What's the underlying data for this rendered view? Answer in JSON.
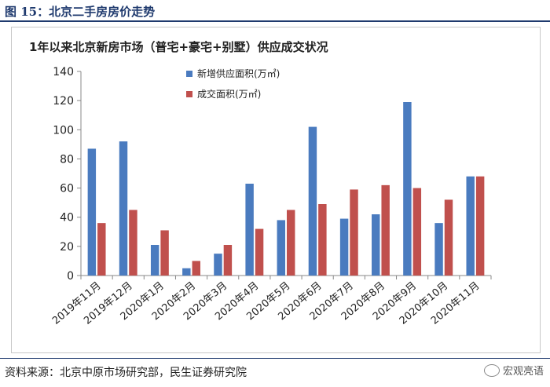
{
  "figure_title": "图 15：北京二手房房价走势",
  "source_text": "资料来源：北京中原市场研究部，民生证券研究院",
  "watermark": "宏观亮语",
  "colors": {
    "series1": "#4a7bbf",
    "series2": "#c0504d",
    "accent": "#1f3a6e"
  },
  "chart_data": {
    "type": "bar",
    "title": "1年以来北京新房市场（普宅+豪宅+别墅）供应成交状况",
    "categories": [
      "2019年11月",
      "2019年12月",
      "2020年1月",
      "2020年2月",
      "2020年3月",
      "2020年4月",
      "2020年5月",
      "2020年6月",
      "2020年7月",
      "2020年8月",
      "2020年9月",
      "2020年10月",
      "2020年11月"
    ],
    "series": [
      {
        "name": "新增供应面积(万㎡)",
        "values": [
          87,
          92,
          21,
          5,
          15,
          63,
          38,
          102,
          39,
          42,
          119,
          36,
          68
        ]
      },
      {
        "name": "成交面积(万㎡)",
        "values": [
          36,
          45,
          31,
          10,
          21,
          32,
          45,
          49,
          59,
          62,
          60,
          52,
          68
        ]
      }
    ],
    "ylim": [
      0,
      140
    ],
    "yticks": [
      0,
      20,
      40,
      60,
      80,
      100,
      120,
      140
    ],
    "grid": false,
    "legend": "top-left"
  }
}
